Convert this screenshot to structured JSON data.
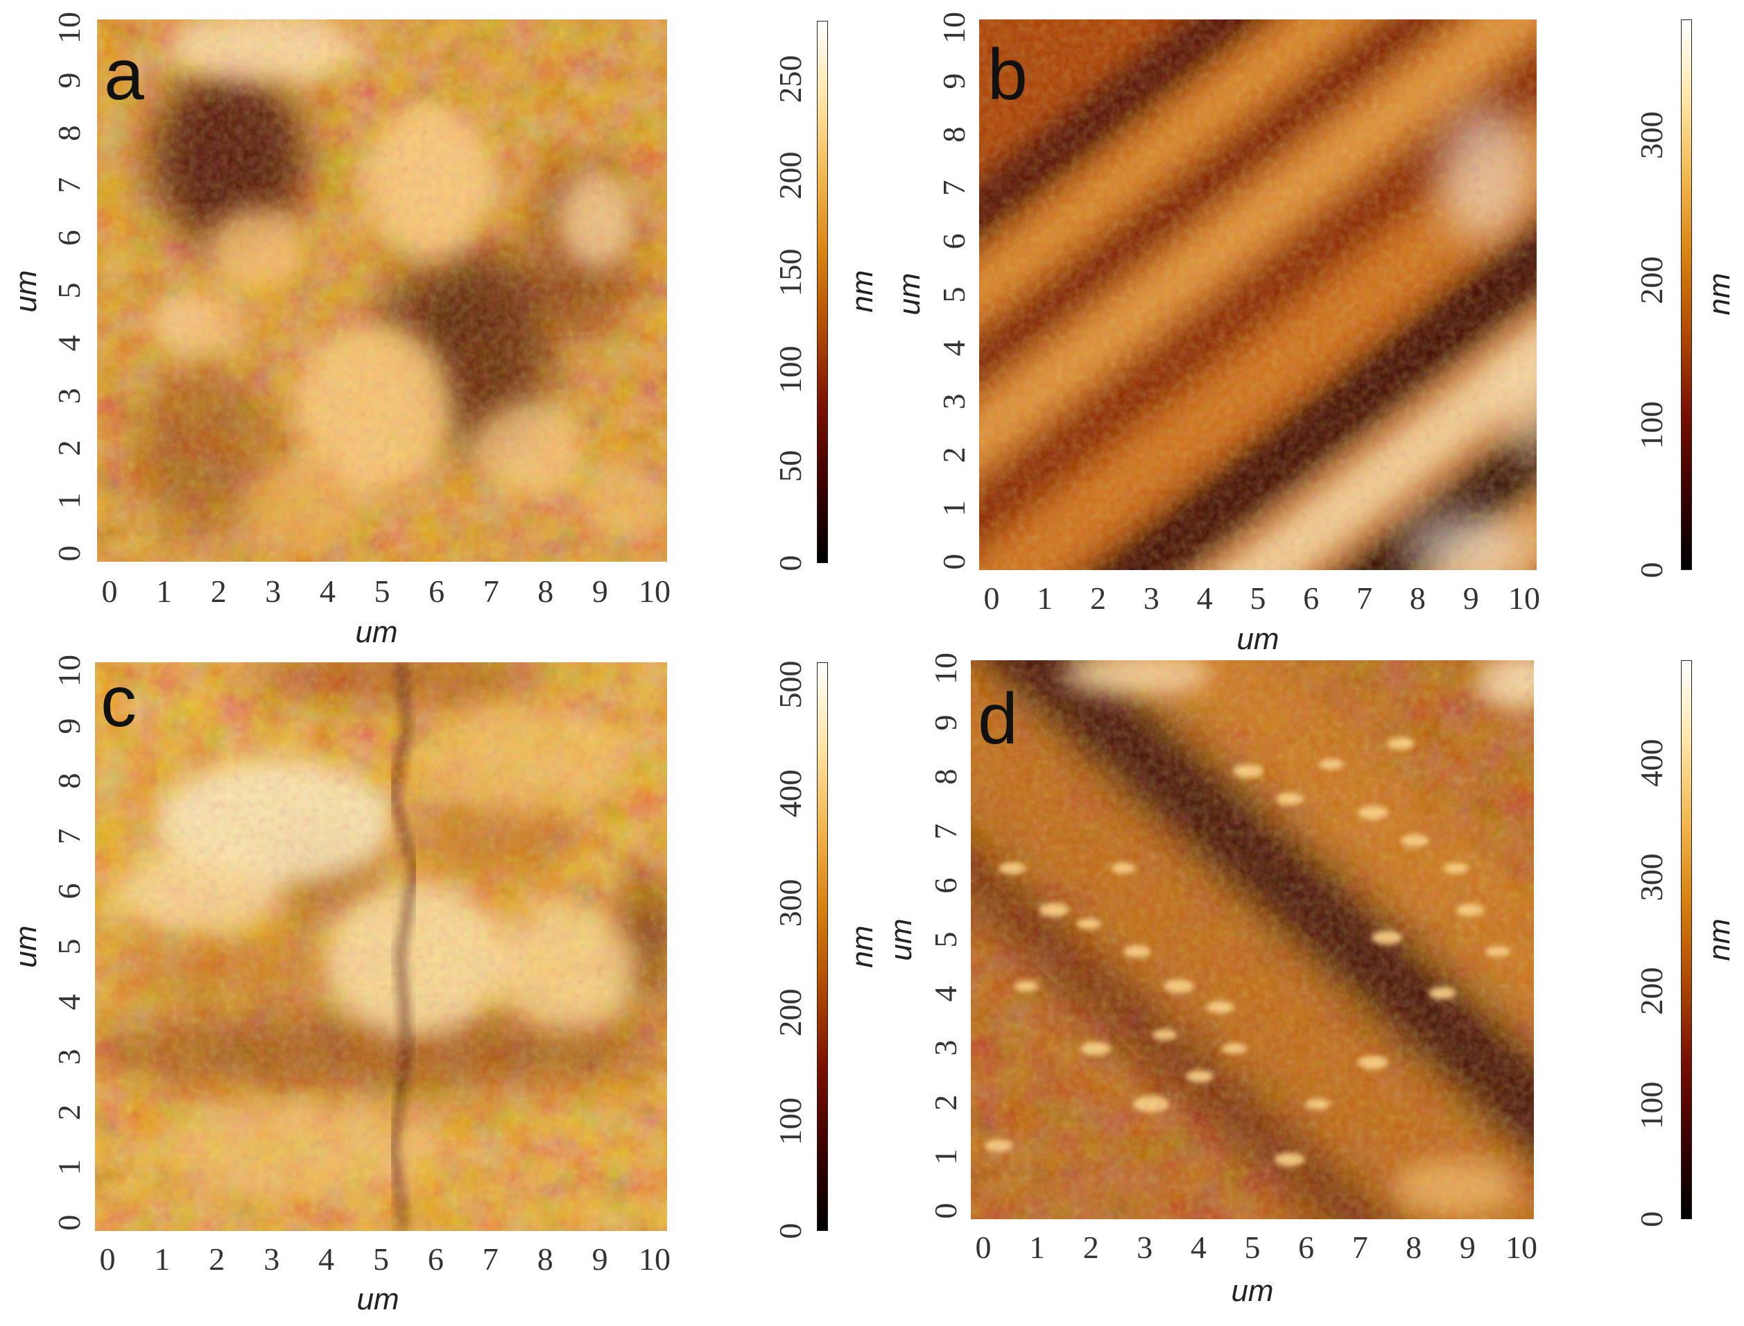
{
  "figure": {
    "colors": {
      "colormap": [
        "#000000",
        "#3c0000",
        "#7a1000",
        "#b04a00",
        "#d9820f",
        "#f2b850",
        "#ffe6a8",
        "#ffffff"
      ]
    },
    "panels": [
      {
        "id": "a",
        "label": "a",
        "x_axis_label": "um",
        "y_axis_label": "um",
        "x_ticks": [
          "0",
          "1",
          "2",
          "3",
          "4",
          "5",
          "6",
          "7",
          "8",
          "9",
          "10"
        ],
        "y_ticks": [
          "0",
          "1",
          "2",
          "3",
          "4",
          "5",
          "6",
          "7",
          "8",
          "9",
          "10"
        ],
        "colorbar": {
          "unit": "nm",
          "ticks": [
            "0",
            "50",
            "100",
            "150",
            "200",
            "250"
          ],
          "max": 280
        },
        "surface": "granular topography with large bright grains, dark pits upper-left and center-right"
      },
      {
        "id": "b",
        "label": "b",
        "x_axis_label": "um",
        "y_axis_label": "um",
        "x_ticks": [
          "0",
          "1",
          "2",
          "3",
          "4",
          "5",
          "6",
          "7",
          "8",
          "9",
          "10"
        ],
        "y_ticks": [
          "0",
          "1",
          "2",
          "3",
          "4",
          "5",
          "6",
          "7",
          "8",
          "9",
          "10"
        ],
        "colorbar": {
          "unit": "nm",
          "ticks": [
            "0",
            "100",
            "200",
            "300"
          ],
          "max": 380
        },
        "surface": "diagonal grooves running lower-left to upper-right, bright ridge on the right"
      },
      {
        "id": "c",
        "label": "c",
        "x_axis_label": "um",
        "y_axis_label": "um",
        "x_ticks": [
          "0",
          "1",
          "2",
          "3",
          "4",
          "5",
          "6",
          "7",
          "8",
          "9",
          "10"
        ],
        "y_ticks": [
          "0",
          "1",
          "2",
          "3",
          "4",
          "5",
          "6",
          "7",
          "8",
          "9",
          "10"
        ],
        "colorbar": {
          "unit": "nm",
          "ticks": [
            "0",
            "100",
            "200",
            "300",
            "400",
            "500"
          ],
          "max": 520
        },
        "surface": "bright patchy plateaus with darker horizontal band and vertical crack near x=5.5"
      },
      {
        "id": "d",
        "label": "d",
        "x_axis_label": "um",
        "y_axis_label": "um",
        "x_ticks": [
          "0",
          "1",
          "2",
          "3",
          "4",
          "5",
          "6",
          "7",
          "8",
          "9",
          "10"
        ],
        "y_ticks": [
          "0",
          "1",
          "2",
          "3",
          "4",
          "5",
          "6",
          "7",
          "8",
          "9",
          "10"
        ],
        "colorbar": {
          "unit": "nm",
          "ticks": [
            "0",
            "100",
            "200",
            "300",
            "400"
          ],
          "max": 490
        },
        "surface": "dark diagonal trench from upper-left to lower-right, bright ellipsoidal particles scattered"
      }
    ]
  }
}
